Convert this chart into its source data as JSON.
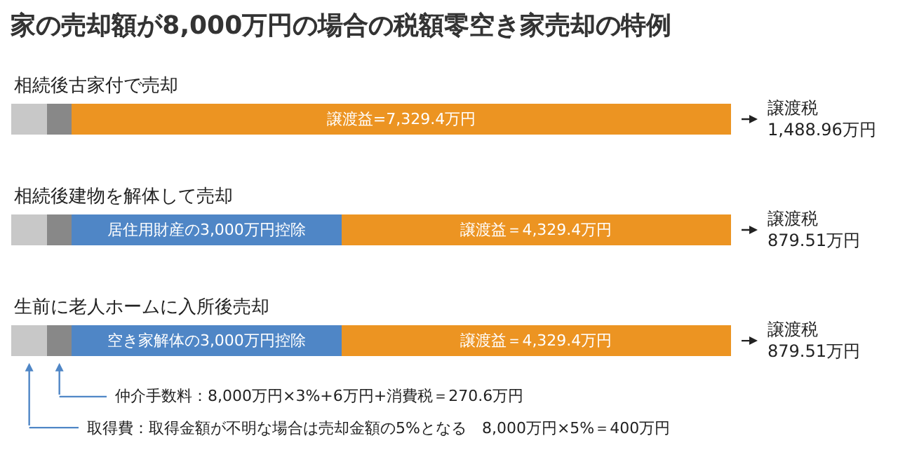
{
  "chart_data": {
    "type": "bar",
    "orientation": "horizontal",
    "stacked": true,
    "tick_labels": false,
    "title": "家の売却額が8,000万円の場合の税額零空き家売却の特例",
    "categories": [
      "相続後古家付で売却",
      "相続後建物を解体して売却",
      "生前に老人ホームに入所後売却"
    ],
    "series": [
      {
        "color": "#c8c8c8",
        "values": [
          400,
          400,
          400
        ]
      },
      {
        "color": "#888888",
        "values": [
          270.6,
          270.6,
          270.6
        ]
      },
      {
        "color": "#4f86c6",
        "values": [
          null,
          3000,
          3000
        ],
        "value_labels": [
          null,
          "居住用財産の3,000万円控除",
          "空き家解体の3,000万円控除"
        ]
      },
      {
        "color": "#ec9422",
        "values": [
          7329.4,
          4329.4,
          4329.4
        ],
        "value_labels": [
          "譲渡益=7,329.4万円",
          "譲渡益＝4,329.4万円",
          "譲渡益＝4,329.4万円"
        ]
      }
    ],
    "annotations": [
      "譲渡税\n1,488.96万円",
      "譲渡税\n879.51万円",
      "譲渡税\n879.51万円",
      "取得費：取得金額が不明な場合は売却金額の5%となる　8,000万円×5%＝400万円",
      "仲介手数料：8,000万円×3%+6万円+消費税＝270.6万円"
    ]
  }
}
